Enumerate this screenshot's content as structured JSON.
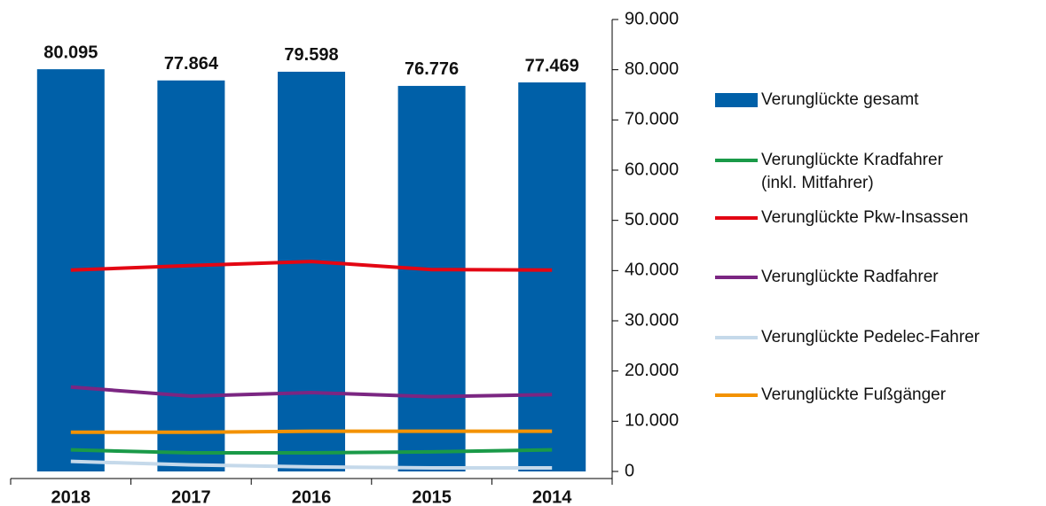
{
  "chart_data": {
    "type": "bar",
    "categories": [
      "2018",
      "2017",
      "2016",
      "2015",
      "2014"
    ],
    "ylim": [
      0,
      90000
    ],
    "yticks": [
      0,
      {
        "value": 10000,
        "label": "10.000"
      },
      {
        "value": 20000,
        "label": "20.000"
      },
      {
        "value": 30000,
        "label": "30.000"
      },
      {
        "value": 40000,
        "label": "40.000"
      },
      {
        "value": 50000,
        "label": "50.000"
      },
      {
        "value": 60000,
        "label": "60.000"
      },
      {
        "value": 70000,
        "label": "70.000"
      },
      {
        "value": 80000,
        "label": "80.000"
      },
      {
        "value": 90000,
        "label": "90.000"
      }
    ],
    "legend": "right",
    "series": [
      {
        "name": "Verunglückte gesamt",
        "type": "bar",
        "color": "#0060a8",
        "values": [
          80095,
          77864,
          79598,
          76776,
          77469
        ],
        "value_labels": [
          "80.095",
          "77.864",
          "79.598",
          "76.776",
          "77.469"
        ]
      },
      {
        "name": "Verunglückte Kradfahrer (inkl. Mitfahrer)",
        "type": "line",
        "color": "#1a9a48",
        "values": [
          4300,
          3700,
          3700,
          3900,
          4300
        ]
      },
      {
        "name": "Verunglückte Pkw-Insassen",
        "type": "line",
        "color": "#e30613",
        "values": [
          40100,
          41000,
          41800,
          40200,
          40100
        ]
      },
      {
        "name": "Verunglückte Radfahrer",
        "type": "line",
        "color": "#7b2682",
        "values": [
          16800,
          15000,
          15700,
          14900,
          15300
        ]
      },
      {
        "name": "Verunglückte Pedelec-Fahrer",
        "type": "line",
        "color": "#c5d9ea",
        "values": [
          2000,
          1300,
          900,
          700,
          700
        ]
      },
      {
        "name": "Verunglückte Fußgänger",
        "type": "line",
        "color": "#f39200",
        "values": [
          7800,
          7800,
          8000,
          8000,
          8000
        ]
      }
    ]
  }
}
